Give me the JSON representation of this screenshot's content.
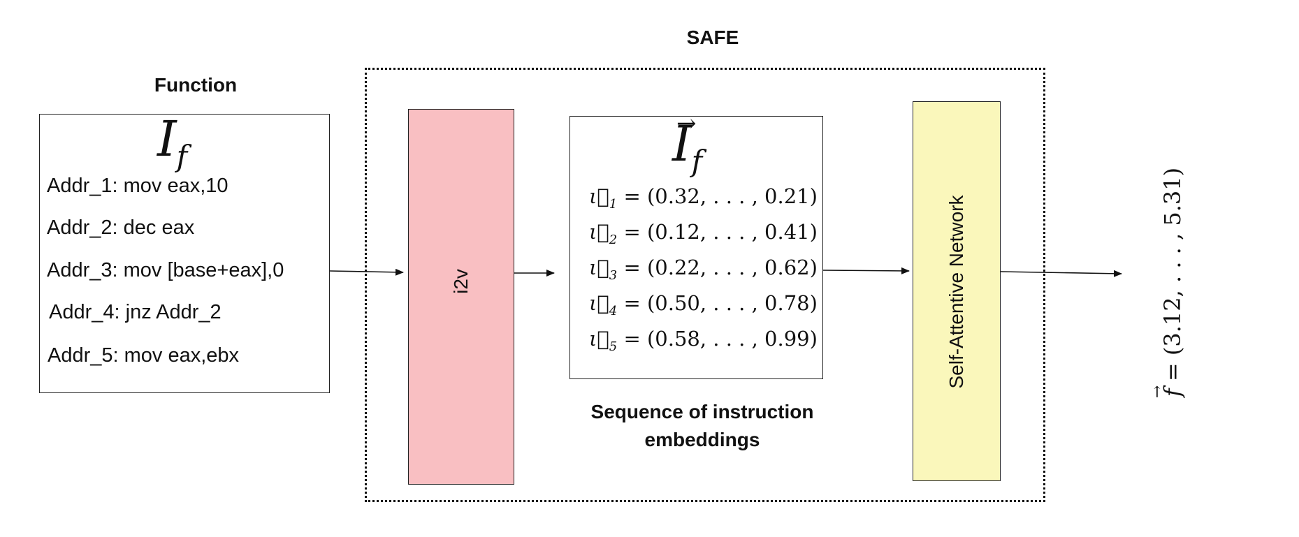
{
  "safe_title": "SAFE",
  "function_title": "Function",
  "function_symbol": "I",
  "function_subscript": "f",
  "instructions": [
    "Addr_1: mov eax,10",
    "Addr_2: dec eax",
    "Addr_3: mov [base+eax],0",
    "Addr_4: jnz Addr_2",
    "Addr_5: mov eax,ebx"
  ],
  "i2v_label": "i2v",
  "embedding_symbol": "I",
  "embedding_subscript": "f",
  "embeddings": [
    {
      "index": "1",
      "value": "= (0.32, . . . , 0.21)"
    },
    {
      "index": "2",
      "value": "= (0.12, . . . , 0.41)"
    },
    {
      "index": "3",
      "value": "= (0.22, . . . , 0.62)"
    },
    {
      "index": "4",
      "value": "= (0.50, . . . , 0.78)"
    },
    {
      "index": "5",
      "value": "= (0.58, . . . , 0.99)"
    }
  ],
  "sequence_caption_line1": "Sequence of instruction",
  "sequence_caption_line2": "embeddings",
  "network_label": "Self-Attentive Network",
  "output_symbol": "f",
  "output_value": "= (3.12, . . . , 5.31)",
  "colors": {
    "i2v_fill": "#f9bfc2",
    "network_fill": "#faf7bb"
  }
}
